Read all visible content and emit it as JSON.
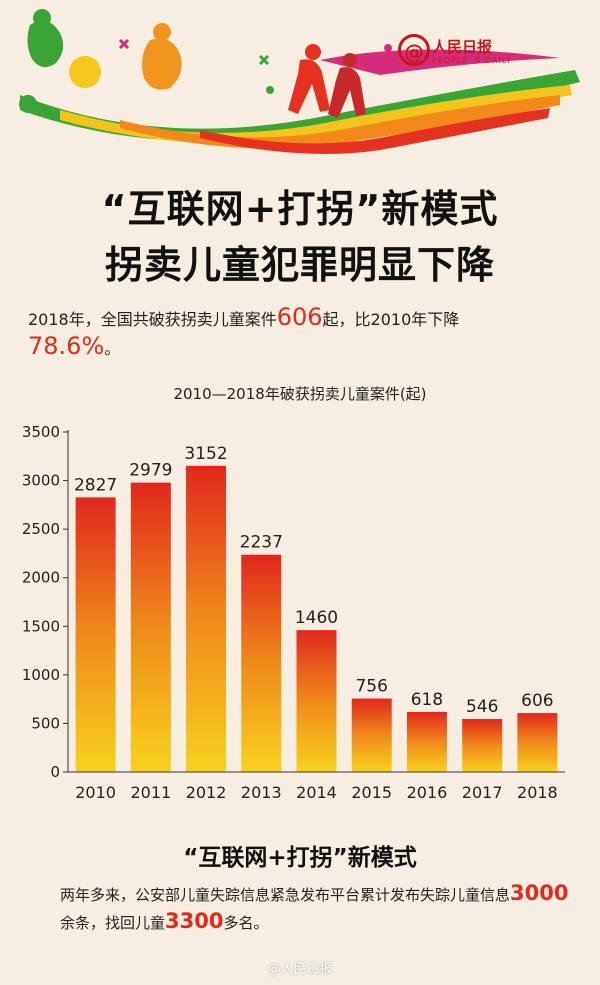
{
  "logo": {
    "at": "@",
    "name": "人民日报",
    "sub": "PEOPLE' S DAILY"
  },
  "headline": {
    "line1": "“互联网+打拐”新模式",
    "line2": "拐卖儿童犯罪明显下降"
  },
  "summary": {
    "p1": "2018年，全国共破获拐卖儿童案件",
    "num1": "606",
    "p2": "起，比2010年下降",
    "num2": "78.6%",
    "p3": "。"
  },
  "chart_data": {
    "type": "bar",
    "title": "2010—2018年破获拐卖儿童案件(起)",
    "categories": [
      "2010",
      "2011",
      "2012",
      "2013",
      "2014",
      "2015",
      "2016",
      "2017",
      "2018"
    ],
    "values": [
      2827,
      2979,
      3152,
      2237,
      1460,
      756,
      618,
      546,
      606
    ],
    "yticks": [
      0,
      500,
      1000,
      1500,
      2000,
      2500,
      3000,
      3500
    ],
    "ylim": [
      0,
      3500
    ],
    "xlabel": "",
    "ylabel": "",
    "grid": false,
    "colors": {
      "top": "#e0281c",
      "mid": "#f08a1a",
      "bottom": "#f7d21e"
    }
  },
  "section": {
    "title": "“互联网+打拐”新模式",
    "p1": "两年多来，公安部儿童失踪信息紧急发布平台累计发布失踪儿童信息",
    "num1": "3000",
    "p2": "余条，找回儿童",
    "num2": "3300",
    "p3": "多名。"
  },
  "watermark": "@人民日报"
}
